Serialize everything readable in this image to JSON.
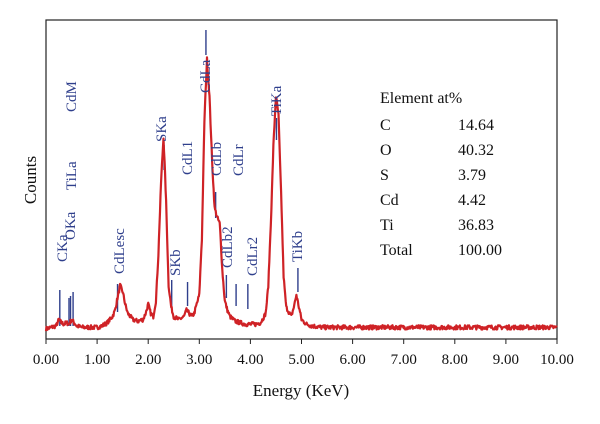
{
  "chart_data": {
    "type": "line",
    "xlabel": "Energy (KeV)",
    "ylabel": "Counts",
    "xlim": [
      0,
      10
    ],
    "ylim": [
      0,
      100
    ],
    "x_ticks": [
      "0.00",
      "1.00",
      "2.00",
      "3.00",
      "4.00",
      "5.00",
      "6.00",
      "7.00",
      "8.00",
      "9.00",
      "10.00"
    ],
    "grid": false,
    "series": [
      {
        "color": "#cf2226",
        "x": [
          0.0,
          0.1,
          0.2,
          0.25,
          0.3,
          0.35,
          0.4,
          0.45,
          0.5,
          0.55,
          0.6,
          0.7,
          0.8,
          0.9,
          1.0,
          1.1,
          1.2,
          1.3,
          1.35,
          1.4,
          1.45,
          1.5,
          1.55,
          1.6,
          1.7,
          1.8,
          1.9,
          1.95,
          2.0,
          2.05,
          2.1,
          2.15,
          2.2,
          2.25,
          2.3,
          2.35,
          2.4,
          2.45,
          2.5,
          2.6,
          2.7,
          2.75,
          2.8,
          2.85,
          2.9,
          3.0,
          3.05,
          3.1,
          3.15,
          3.2,
          3.25,
          3.3,
          3.35,
          3.4,
          3.45,
          3.5,
          3.55,
          3.6,
          3.7,
          3.8,
          3.9,
          4.0,
          4.1,
          4.2,
          4.3,
          4.35,
          4.4,
          4.45,
          4.5,
          4.55,
          4.6,
          4.65,
          4.7,
          4.8,
          4.85,
          4.9,
          4.95,
          5.0,
          5.1,
          5.2,
          5.4,
          5.6,
          5.8,
          6.0,
          6.5,
          7.0,
          7.5,
          8.0,
          8.5,
          9.0,
          9.5,
          10.0
        ],
        "y": [
          1,
          1.5,
          2,
          4,
          3,
          2.5,
          3,
          2.5,
          4,
          3,
          2,
          1.5,
          1.5,
          1.5,
          1.5,
          2,
          3,
          5,
          7,
          11,
          15,
          13,
          9,
          6,
          4,
          3.5,
          4,
          6,
          9,
          6,
          5,
          10,
          25,
          48,
          63,
          42,
          15,
          8,
          5,
          4,
          5,
          7,
          6,
          5,
          6,
          12,
          30,
          68,
          88,
          76,
          55,
          40,
          37,
          35,
          20,
          10,
          7,
          5,
          3.5,
          3,
          2.5,
          2.5,
          2.5,
          3,
          6,
          15,
          35,
          60,
          76,
          70,
          45,
          18,
          8,
          5,
          8,
          12,
          8,
          4,
          2.5,
          2,
          1.5,
          1.5,
          1.5,
          1.5,
          1.5,
          1.5,
          1.5,
          1.5,
          1.5,
          1.5,
          1.5,
          1.5
        ]
      }
    ],
    "peak_labels": [
      {
        "label": "CKa",
        "x": 0.27
      },
      {
        "label": "OKa",
        "x": 0.45
      },
      {
        "label": "TiLa",
        "x": 0.48
      },
      {
        "label": "CdM",
        "x": 0.53
      },
      {
        "label": "CdLesc",
        "x": 1.4
      },
      {
        "label": "SKa",
        "x": 2.31
      },
      {
        "label": "SKb",
        "x": 2.46
      },
      {
        "label": "CdL1",
        "x": 2.77
      },
      {
        "label": "CdLa",
        "x": 3.13
      },
      {
        "label": "CdLb",
        "x": 3.32
      },
      {
        "label": "CdLb2",
        "x": 3.53
      },
      {
        "label": "CdLr",
        "x": 3.72
      },
      {
        "label": "CdLr2",
        "x": 3.95
      },
      {
        "label": "TiKa",
        "x": 4.51
      },
      {
        "label": "TiKb",
        "x": 4.93
      }
    ],
    "composition_table": {
      "header": "Element at%",
      "rows": [
        {
          "element": "C",
          "value": "14.64"
        },
        {
          "element": "O",
          "value": "40.32"
        },
        {
          "element": "S",
          "value": "3.79"
        },
        {
          "element": "Cd",
          "value": "4.42"
        },
        {
          "element": "Ti",
          "value": "36.83"
        },
        {
          "element": "Total",
          "value": "100.00"
        }
      ]
    }
  }
}
